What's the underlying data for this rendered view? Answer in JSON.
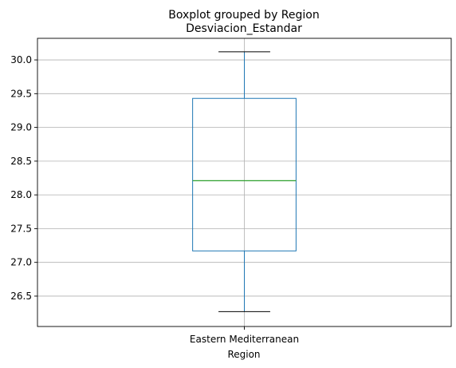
{
  "chart_data": {
    "type": "box",
    "suptitle": "Boxplot grouped by Region",
    "title": "Desviacion_Estandar",
    "xlabel": "Region",
    "ylabel": "",
    "categories": [
      "Eastern Mediterranean"
    ],
    "boxes": [
      {
        "category": "Eastern Mediterranean",
        "min": 26.27,
        "q1": 27.17,
        "median": 28.21,
        "q3": 29.43,
        "max": 30.12
      }
    ],
    "ylim": [
      26.05,
      30.32
    ],
    "yticks": [
      26.5,
      27.0,
      27.5,
      28.0,
      28.5,
      29.0,
      29.5,
      30.0
    ],
    "ytick_labels": [
      "26.5",
      "27.0",
      "27.5",
      "28.0",
      "28.5",
      "29.0",
      "29.5",
      "30.0"
    ],
    "grid": true,
    "colors": {
      "box": "#1f77b4",
      "median": "#2ca02c",
      "whisker": "#1f77b4",
      "cap": "#000000",
      "grid": "#b0b0b0"
    }
  }
}
